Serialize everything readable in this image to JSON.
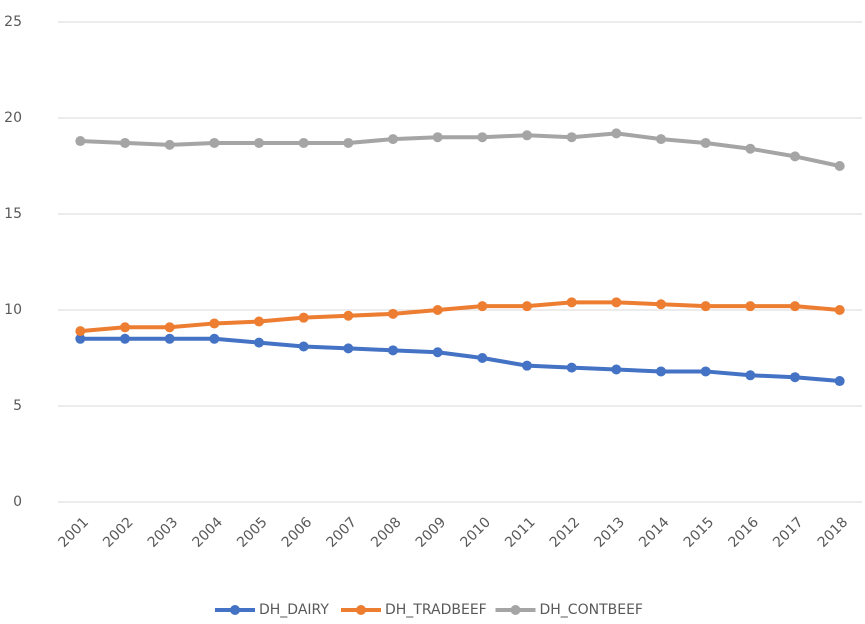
{
  "chart_data": {
    "type": "line",
    "categories": [
      "2001",
      "2002",
      "2003",
      "2004",
      "2005",
      "2006",
      "2007",
      "2008",
      "2009",
      "2010",
      "2011",
      "2012",
      "2013",
      "2014",
      "2015",
      "2016",
      "2017",
      "2018"
    ],
    "series": [
      {
        "name": "DH_DAIRY",
        "color": "#4472c4",
        "values": [
          8.5,
          8.5,
          8.5,
          8.5,
          8.3,
          8.1,
          8.0,
          7.9,
          7.8,
          7.5,
          7.1,
          7.0,
          6.9,
          6.8,
          6.8,
          6.6,
          6.5,
          6.3
        ]
      },
      {
        "name": "DH_TRADBEEF",
        "color": "#ed7d31",
        "values": [
          8.9,
          9.1,
          9.1,
          9.3,
          9.4,
          9.6,
          9.7,
          9.8,
          10.0,
          10.2,
          10.2,
          10.4,
          10.4,
          10.3,
          10.2,
          10.2,
          10.2,
          10.0
        ]
      },
      {
        "name": "DH_CONTBEEF",
        "color": "#a5a5a5",
        "values": [
          18.8,
          18.7,
          18.6,
          18.7,
          18.7,
          18.7,
          18.7,
          18.9,
          19.0,
          19.0,
          19.1,
          19.0,
          19.2,
          18.9,
          18.7,
          18.4,
          18.0,
          17.5
        ]
      }
    ],
    "ylim": [
      0,
      25
    ],
    "yticks": [
      0,
      5,
      10,
      15,
      20,
      25
    ],
    "grid": true,
    "legend": "bottom"
  }
}
